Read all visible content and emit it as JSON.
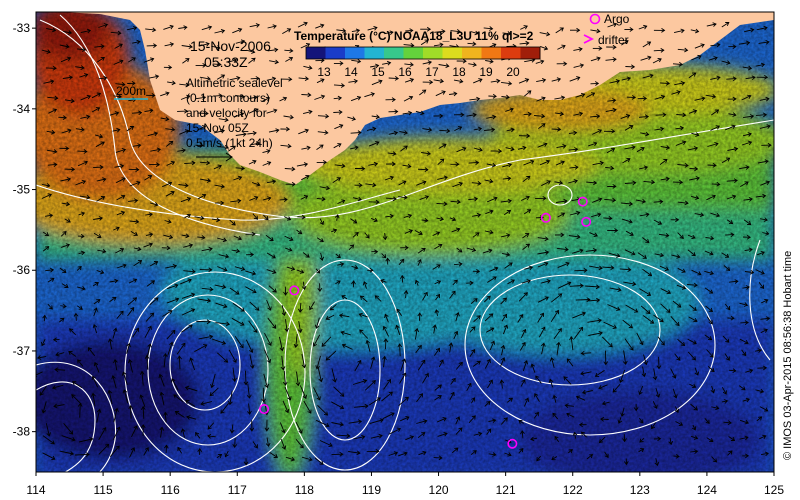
{
  "date_label": "15-Nov-2006",
  "time_label": "05:33Z",
  "colorbar": {
    "title": "Temperature (°C) NOAA18_L3U 11% ql>=2",
    "ticks": [
      "13",
      "14",
      "15",
      "16",
      "17",
      "18",
      "19",
      "20"
    ],
    "colors": [
      "#14147a",
      "#1a3cc8",
      "#1e78e6",
      "#23b4d2",
      "#37c88c",
      "#64d23c",
      "#a0dc28",
      "#dcdc1e",
      "#f0b41e",
      "#f07814",
      "#dc3c0f",
      "#a01e0a"
    ]
  },
  "legend": {
    "argo_label": "Argo",
    "drifter_label": "drifter",
    "marker_color": "#ff00ff"
  },
  "bathymetry_label": "200m",
  "info_lines": [
    "Altimetric sealevel",
    "(0.1m contours)",
    "and velocity for",
    "15-Nov 05Z",
    "0.5m/s (1kt 24h)"
  ],
  "axes": {
    "x_ticks": [
      "114",
      "115",
      "116",
      "117",
      "118",
      "119",
      "120",
      "121",
      "122",
      "123",
      "124",
      "125"
    ],
    "y_ticks": [
      "-33",
      "-34",
      "-35",
      "-36",
      "-37",
      "-38"
    ]
  },
  "argo_floats": [
    {
      "lon": 121.6,
      "lat": -35.35
    },
    {
      "lon": 122.15,
      "lat": -35.15
    },
    {
      "lon": 122.2,
      "lat": -35.4
    },
    {
      "lon": 117.85,
      "lat": -36.25
    },
    {
      "lon": 117.4,
      "lat": -37.72
    },
    {
      "lon": 121.1,
      "lat": -38.15
    }
  ],
  "credit": "© IMOS 03-Apr-2015 08:56:38 Hobart time",
  "colors": {
    "land": "#fcc8a0",
    "contour": "#ffffff",
    "arrow": "#000000"
  }
}
